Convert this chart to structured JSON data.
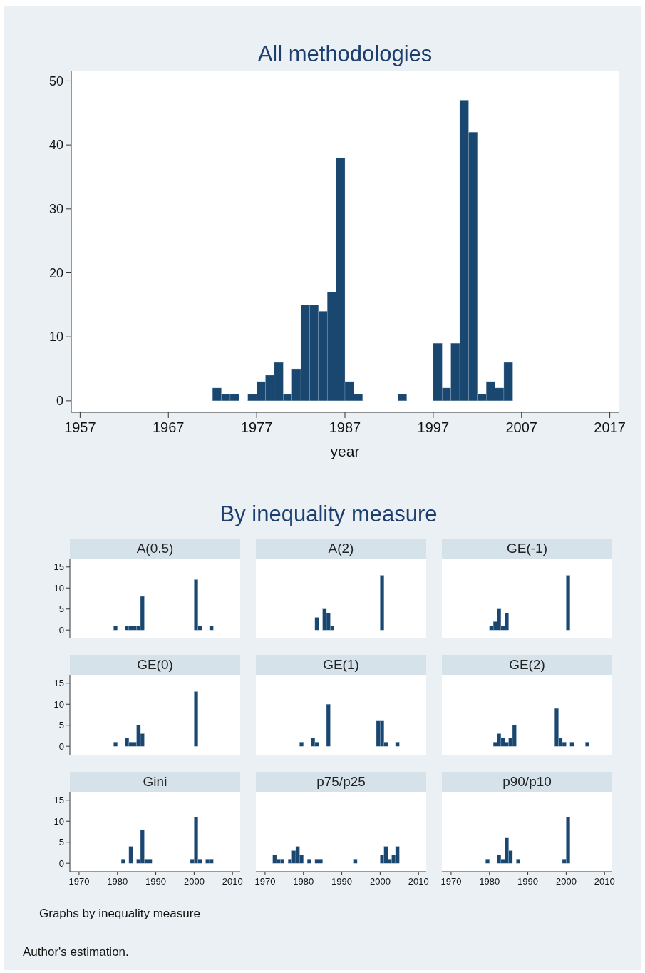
{
  "chart_data": [
    {
      "type": "histogram",
      "title": "All methodologies",
      "xlabel": "year",
      "color": "#1a476f",
      "bins": [
        1972,
        1973,
        1974,
        1975,
        1976,
        1977,
        1978,
        1979,
        1980,
        1981,
        1982,
        1983,
        1984,
        1985,
        1986,
        1987,
        1988,
        1989,
        1990,
        1991,
        1992,
        1993,
        1994,
        1995,
        1996,
        1997,
        1998,
        1999,
        2000,
        2001,
        2002,
        2003,
        2004,
        2005,
        2006
      ],
      "values": [
        2,
        1,
        1,
        0,
        1,
        3,
        4,
        6,
        1,
        5,
        15,
        15,
        14,
        17,
        38,
        3,
        1,
        0,
        0,
        0,
        0,
        1,
        0,
        0,
        0,
        9,
        2,
        9,
        47,
        42,
        1,
        3,
        2,
        6
      ],
      "xlim": [
        1956,
        2018
      ],
      "ylim": [
        -1.8,
        51.5
      ],
      "xticks": [
        1957,
        1967,
        1977,
        1987,
        1997,
        2007,
        2017
      ],
      "yticks": [
        0,
        10,
        20,
        30,
        40,
        50
      ]
    },
    {
      "type": "other",
      "title": "By inequality measure",
      "annotations": [
        "Graphs by inequality measure",
        "Author's estimation."
      ]
    },
    {
      "type": "histogram",
      "title": "A(0.5)",
      "color": "#1a476f",
      "bins": [
        1972,
        1973,
        1974,
        1975,
        1976,
        1977,
        1978,
        1979,
        1980,
        1981,
        1982,
        1983,
        1984,
        1985,
        1986,
        1987,
        1988,
        1989,
        1990,
        1991,
        1992,
        1993,
        1994,
        1995,
        1996,
        1997,
        1998,
        1999,
        2000,
        2001,
        2002,
        2003,
        2004,
        2005,
        2006
      ],
      "values": [
        0,
        0,
        0,
        0,
        0,
        0,
        0,
        1,
        0,
        0,
        1,
        1,
        1,
        1,
        8,
        0,
        0,
        0,
        0,
        0,
        0,
        0,
        0,
        0,
        0,
        0,
        0,
        0,
        12,
        1,
        0,
        0,
        1,
        0
      ],
      "xlim": [
        1967.6,
        2012
      ],
      "ylim": [
        -2,
        17
      ],
      "yticks": [
        0,
        5,
        10,
        15
      ],
      "tick_labels": "y"
    },
    {
      "type": "histogram",
      "title": "A(2)",
      "color": "#1a476f",
      "bins": [
        1972,
        1973,
        1974,
        1975,
        1976,
        1977,
        1978,
        1979,
        1980,
        1981,
        1982,
        1983,
        1984,
        1985,
        1986,
        1987,
        1988,
        1989,
        1990,
        1991,
        1992,
        1993,
        1994,
        1995,
        1996,
        1997,
        1998,
        1999,
        2000,
        2001,
        2002,
        2003,
        2004,
        2005,
        2006
      ],
      "values": [
        0,
        0,
        0,
        0,
        0,
        0,
        0,
        0,
        0,
        0,
        0,
        3,
        0,
        5,
        4,
        1,
        0,
        0,
        0,
        0,
        0,
        0,
        0,
        0,
        0,
        0,
        0,
        0,
        13,
        0,
        0,
        0,
        0,
        0
      ],
      "xlim": [
        1967.6,
        2012
      ],
      "ylim": [
        -2,
        17
      ],
      "tick_labels": false
    },
    {
      "type": "histogram",
      "title": "GE(-1)",
      "color": "#1a476f",
      "bins": [
        1972,
        1973,
        1974,
        1975,
        1976,
        1977,
        1978,
        1979,
        1980,
        1981,
        1982,
        1983,
        1984,
        1985,
        1986,
        1987,
        1988,
        1989,
        1990,
        1991,
        1992,
        1993,
        1994,
        1995,
        1996,
        1997,
        1998,
        1999,
        2000,
        2001,
        2002,
        2003,
        2004,
        2005,
        2006
      ],
      "values": [
        0,
        0,
        0,
        0,
        0,
        0,
        0,
        0,
        1,
        2,
        5,
        1,
        4,
        0,
        0,
        0,
        0,
        0,
        0,
        0,
        0,
        0,
        0,
        0,
        0,
        0,
        0,
        0,
        13,
        0,
        0,
        0,
        0,
        0
      ],
      "xlim": [
        1967.6,
        2012
      ],
      "ylim": [
        -2,
        17
      ],
      "tick_labels": false
    },
    {
      "type": "histogram",
      "title": "GE(0)",
      "color": "#1a476f",
      "bins": [
        1972,
        1973,
        1974,
        1975,
        1976,
        1977,
        1978,
        1979,
        1980,
        1981,
        1982,
        1983,
        1984,
        1985,
        1986,
        1987,
        1988,
        1989,
        1990,
        1991,
        1992,
        1993,
        1994,
        1995,
        1996,
        1997,
        1998,
        1999,
        2000,
        2001,
        2002,
        2003,
        2004,
        2005,
        2006
      ],
      "values": [
        0,
        0,
        0,
        0,
        0,
        0,
        0,
        1,
        0,
        0,
        2,
        1,
        1,
        5,
        3,
        0,
        0,
        0,
        0,
        0,
        0,
        0,
        0,
        0,
        0,
        0,
        0,
        0,
        13,
        0,
        0,
        0,
        0,
        0
      ],
      "xlim": [
        1967.6,
        2012
      ],
      "ylim": [
        -2,
        17
      ],
      "yticks": [
        0,
        5,
        10,
        15
      ],
      "tick_labels": "y"
    },
    {
      "type": "histogram",
      "title": "GE(1)",
      "color": "#1a476f",
      "bins": [
        1972,
        1973,
        1974,
        1975,
        1976,
        1977,
        1978,
        1979,
        1980,
        1981,
        1982,
        1983,
        1984,
        1985,
        1986,
        1987,
        1988,
        1989,
        1990,
        1991,
        1992,
        1993,
        1994,
        1995,
        1996,
        1997,
        1998,
        1999,
        2000,
        2001,
        2002,
        2003,
        2004,
        2005,
        2006
      ],
      "values": [
        0,
        0,
        0,
        0,
        0,
        0,
        0,
        1,
        0,
        0,
        2,
        1,
        0,
        0,
        10,
        0,
        0,
        0,
        0,
        0,
        0,
        0,
        0,
        0,
        0,
        0,
        0,
        6,
        6,
        1,
        0,
        0,
        1,
        0
      ],
      "xlim": [
        1967.6,
        2012
      ],
      "ylim": [
        -2,
        17
      ],
      "tick_labels": false
    },
    {
      "type": "histogram",
      "title": "GE(2)",
      "color": "#1a476f",
      "bins": [
        1972,
        1973,
        1974,
        1975,
        1976,
        1977,
        1978,
        1979,
        1980,
        1981,
        1982,
        1983,
        1984,
        1985,
        1986,
        1987,
        1988,
        1989,
        1990,
        1991,
        1992,
        1993,
        1994,
        1995,
        1996,
        1997,
        1998,
        1999,
        2000,
        2001,
        2002,
        2003,
        2004,
        2005,
        2006
      ],
      "values": [
        0,
        0,
        0,
        0,
        0,
        0,
        0,
        0,
        0,
        1,
        3,
        2,
        1,
        2,
        5,
        0,
        0,
        0,
        0,
        0,
        0,
        0,
        0,
        0,
        0,
        9,
        2,
        1,
        0,
        1,
        0,
        0,
        0,
        1
      ],
      "xlim": [
        1967.6,
        2012
      ],
      "ylim": [
        -2,
        17
      ],
      "tick_labels": false
    },
    {
      "type": "histogram",
      "title": "Gini",
      "color": "#1a476f",
      "bins": [
        1972,
        1973,
        1974,
        1975,
        1976,
        1977,
        1978,
        1979,
        1980,
        1981,
        1982,
        1983,
        1984,
        1985,
        1986,
        1987,
        1988,
        1989,
        1990,
        1991,
        1992,
        1993,
        1994,
        1995,
        1996,
        1997,
        1998,
        1999,
        2000,
        2001,
        2002,
        2003,
        2004,
        2005,
        2006
      ],
      "values": [
        0,
        0,
        0,
        0,
        0,
        0,
        0,
        0,
        0,
        1,
        0,
        4,
        0,
        1,
        8,
        1,
        1,
        0,
        0,
        0,
        0,
        0,
        0,
        0,
        0,
        0,
        0,
        1,
        11,
        1,
        0,
        1,
        1,
        0
      ],
      "xlim": [
        1967.6,
        2012
      ],
      "ylim": [
        -2,
        17
      ],
      "xticks": [
        1970,
        1980,
        1990,
        2000,
        2010
      ],
      "yticks": [
        0,
        5,
        10,
        15
      ]
    },
    {
      "type": "histogram",
      "title": "p75/p25",
      "color": "#1a476f",
      "bins": [
        1972,
        1973,
        1974,
        1975,
        1976,
        1977,
        1978,
        1979,
        1980,
        1981,
        1982,
        1983,
        1984,
        1985,
        1986,
        1987,
        1988,
        1989,
        1990,
        1991,
        1992,
        1993,
        1994,
        1995,
        1996,
        1997,
        1998,
        1999,
        2000,
        2001,
        2002,
        2003,
        2004,
        2005,
        2006
      ],
      "values": [
        2,
        1,
        1,
        0,
        1,
        3,
        4,
        2,
        0,
        1,
        0,
        1,
        1,
        0,
        0,
        0,
        0,
        0,
        0,
        0,
        0,
        1,
        0,
        0,
        0,
        0,
        0,
        0,
        2,
        4,
        1,
        2,
        4,
        0
      ],
      "xlim": [
        1967.6,
        2012
      ],
      "ylim": [
        -2,
        17
      ],
      "xticks": [
        1970,
        1980,
        1990,
        2000,
        2010
      ],
      "tick_labels": "x"
    },
    {
      "type": "histogram",
      "title": "p90/p10",
      "color": "#1a476f",
      "bins": [
        1972,
        1973,
        1974,
        1975,
        1976,
        1977,
        1978,
        1979,
        1980,
        1981,
        1982,
        1983,
        1984,
        1985,
        1986,
        1987,
        1988,
        1989,
        1990,
        1991,
        1992,
        1993,
        1994,
        1995,
        1996,
        1997,
        1998,
        1999,
        2000,
        2001,
        2002,
        2003,
        2004,
        2005,
        2006
      ],
      "values": [
        0,
        0,
        0,
        0,
        0,
        0,
        0,
        1,
        0,
        0,
        2,
        1,
        6,
        3,
        0,
        1,
        0,
        0,
        0,
        0,
        0,
        0,
        0,
        0,
        0,
        0,
        0,
        1,
        11,
        0,
        0,
        0,
        0,
        0
      ],
      "xlim": [
        1967.6,
        2012
      ],
      "ylim": [
        -2,
        17
      ],
      "xticks": [
        1970,
        1980,
        1990,
        2000,
        2010
      ],
      "tick_labels": "x"
    }
  ]
}
